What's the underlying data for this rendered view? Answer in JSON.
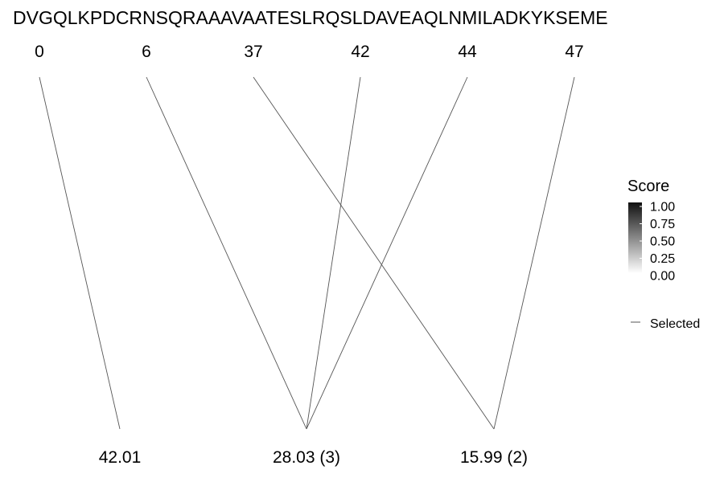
{
  "sequence": "DVGQLKPDCRNSQRAAAVAATESLRQSLDAVEAQLNMILADKYKSEME",
  "positions": [
    {
      "id": "p0",
      "label": "0"
    },
    {
      "id": "p6",
      "label": "6"
    },
    {
      "id": "p37",
      "label": "37"
    },
    {
      "id": "p42",
      "label": "42"
    },
    {
      "id": "p44",
      "label": "44"
    },
    {
      "id": "p47",
      "label": "47"
    }
  ],
  "masses": [
    {
      "id": "m0",
      "label": "42.01"
    },
    {
      "id": "m1",
      "label": "28.03 (3)"
    },
    {
      "id": "m2",
      "label": "15.99 (2)"
    }
  ],
  "links": [
    {
      "from": 0,
      "to": 0
    },
    {
      "from": 1,
      "to": 1
    },
    {
      "from": 2,
      "to": 2
    },
    {
      "from": 3,
      "to": 1
    },
    {
      "from": 4,
      "to": 1
    },
    {
      "from": 5,
      "to": 2
    }
  ],
  "legend": {
    "title": "Score",
    "ticks": [
      "1.00",
      "0.75",
      "0.50",
      "0.25",
      "0.00"
    ],
    "gradient_top": "#111111",
    "gradient_bottom": "#ffffff",
    "key_label": "Selected"
  },
  "colors": {
    "line": "#555555",
    "text": "#000000",
    "background": "#ffffff"
  }
}
